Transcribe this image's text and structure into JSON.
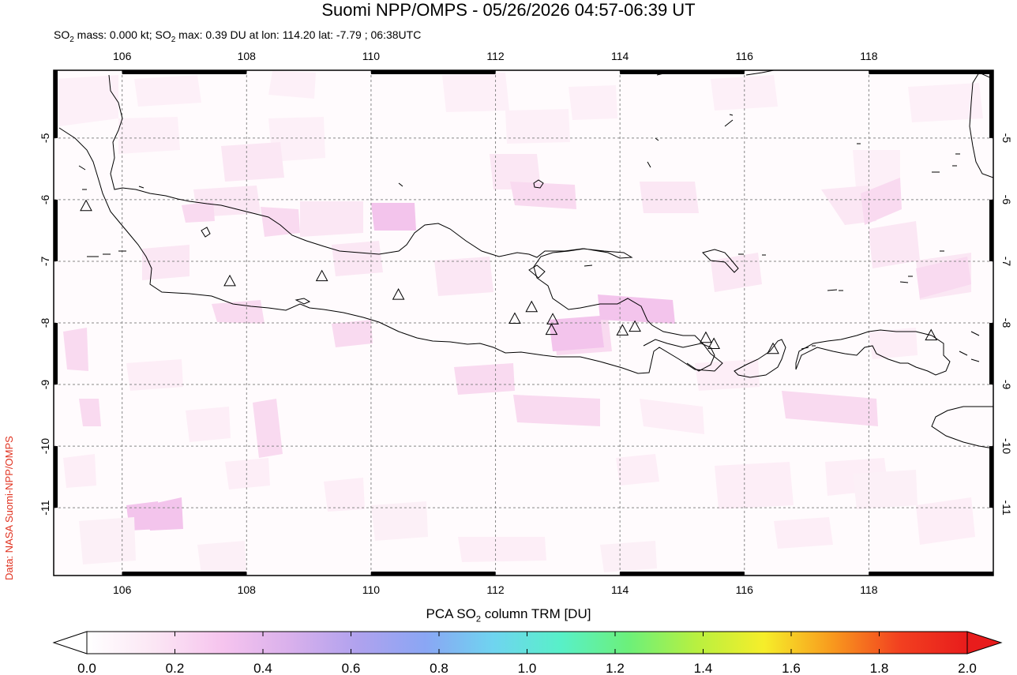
{
  "title": "Suomi NPP/OMPS - 05/26/2026 04:57-06:39 UT",
  "subtitle": {
    "p1": "SO",
    "p2": "2",
    "p3": " mass: 0.000 kt; SO",
    "p4": "2",
    "p5": " max: 0.39 DU at lon: 114.20 lat: -7.79 ; 06:38UTC"
  },
  "credit": "Data: NASA Suomi-NPP/OMPS",
  "map": {
    "lon_range": [
      104.9,
      120.0
    ],
    "lat_range": [
      -12.1,
      -3.9
    ],
    "lon_ticks": [
      "106",
      "108",
      "110",
      "112",
      "114",
      "116",
      "118"
    ],
    "lat_ticks": [
      "-5",
      "-6",
      "-7",
      "-8",
      "-9",
      "-10",
      "-11"
    ],
    "grid": "dashed",
    "volcano_marker": "triangle-icon",
    "volcanoes": [
      {
        "lon": 105.42,
        "lat": -6.1
      },
      {
        "lon": 107.73,
        "lat": -7.32
      },
      {
        "lon": 109.21,
        "lat": -7.24
      },
      {
        "lon": 110.44,
        "lat": -7.54
      },
      {
        "lon": 112.31,
        "lat": -7.93
      },
      {
        "lon": 112.58,
        "lat": -7.74
      },
      {
        "lon": 112.92,
        "lat": -7.94
      },
      {
        "lon": 112.9,
        "lat": -8.11
      },
      {
        "lon": 114.04,
        "lat": -8.12
      },
      {
        "lon": 114.24,
        "lat": -8.06
      },
      {
        "lon": 115.38,
        "lat": -8.24
      },
      {
        "lon": 115.51,
        "lat": -8.34
      },
      {
        "lon": 116.46,
        "lat": -8.42
      },
      {
        "lon": 119.0,
        "lat": -8.2
      }
    ]
  },
  "colorbar": {
    "title_p1": "PCA SO",
    "title_p2": "2",
    "title_p3": " column TRM [DU]",
    "ticks": [
      "0.0",
      "0.2",
      "0.4",
      "0.6",
      "0.8",
      "1.0",
      "1.2",
      "1.4",
      "1.6",
      "1.8",
      "2.0"
    ],
    "colors": [
      "#ffffff",
      "#fbe6f4",
      "#f6c4ee",
      "#d9b0ec",
      "#b0a2ee",
      "#8aa6f4",
      "#6fd4f0",
      "#58f0c8",
      "#6cf07a",
      "#b8f040",
      "#f6ee2a",
      "#f89a1e",
      "#f24020",
      "#e81c1c"
    ]
  },
  "colors": {
    "outline": "#000000",
    "grid": "#888888",
    "credit": "#e0301e"
  }
}
